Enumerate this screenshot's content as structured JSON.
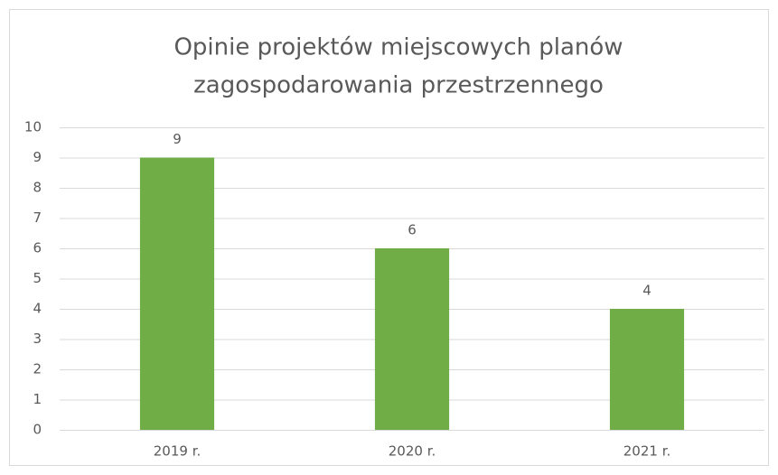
{
  "chart_data": {
    "type": "bar",
    "title": [
      "Opinie projektów miejscowych planów",
      "zagospodarowania przestrzennego"
    ],
    "categories": [
      "2019 r.",
      "2020 r.",
      "2021 r."
    ],
    "values": [
      9,
      6,
      4
    ],
    "color": "#70ad47",
    "ylim": [
      0,
      10
    ],
    "yticks": [
      0,
      1,
      2,
      3,
      4,
      5,
      6,
      7,
      8,
      9,
      10
    ],
    "grid": true
  }
}
